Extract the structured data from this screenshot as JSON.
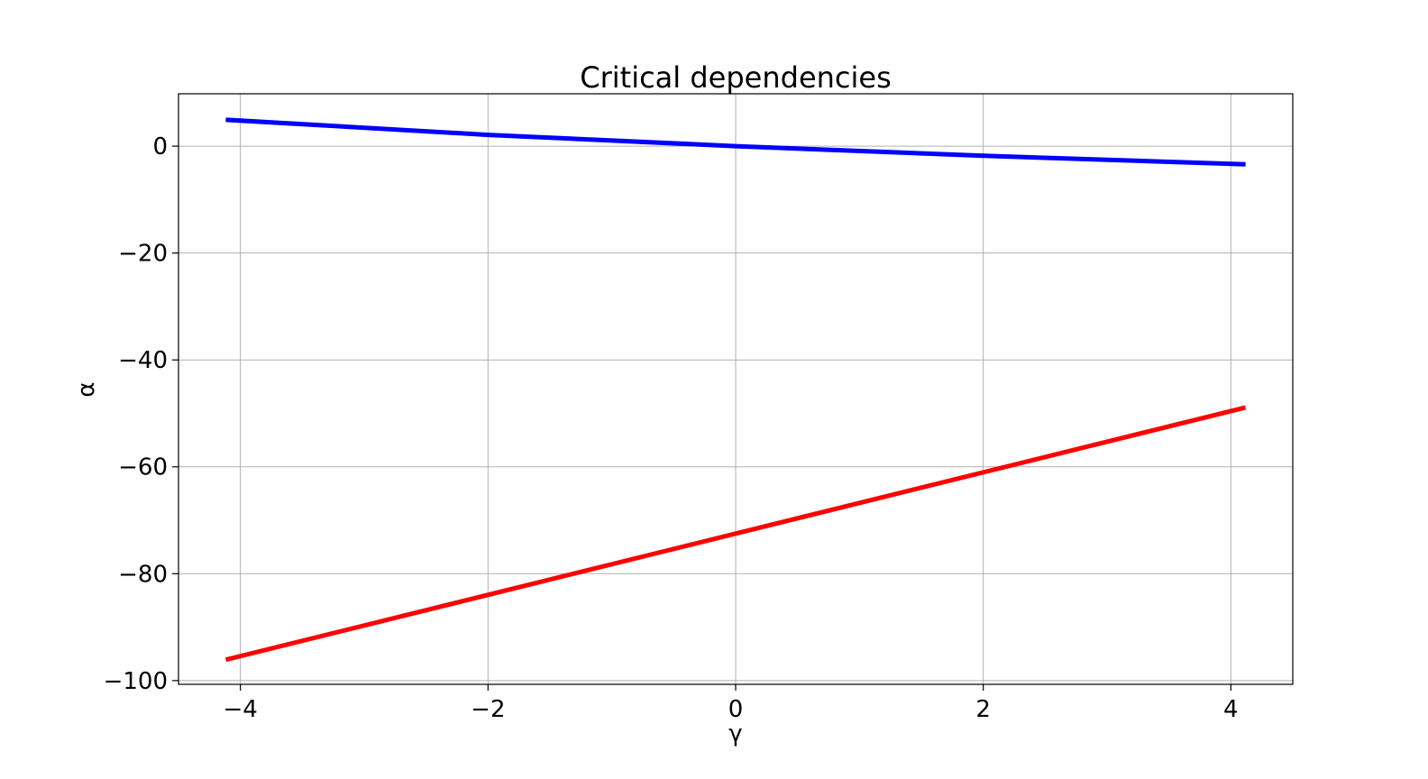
{
  "chart_data": {
    "type": "line",
    "title": "Critical dependencies",
    "xlabel": "γ",
    "ylabel": "α",
    "xlim": [
      -4.5,
      4.5
    ],
    "ylim": [
      -100.7,
      9.8
    ],
    "xticks": [
      -4,
      -2,
      0,
      2,
      4
    ],
    "xtick_labels": [
      "−4",
      "−2",
      "0",
      "2",
      "4"
    ],
    "yticks": [
      0,
      -20,
      -40,
      -60,
      -80,
      -100
    ],
    "ytick_labels": [
      "0",
      "−20",
      "−40",
      "−60",
      "−80",
      "−100"
    ],
    "grid": true,
    "series": [
      {
        "color": "#0000ff",
        "x": [
          -4.1,
          -2,
          0,
          2,
          4.1
        ],
        "y": [
          4.9,
          2.1,
          0,
          -1.8,
          -3.4
        ]
      },
      {
        "color": "#ff0000",
        "x": [
          -4.1,
          4.1
        ],
        "y": [
          -96,
          -49
        ]
      }
    ]
  }
}
